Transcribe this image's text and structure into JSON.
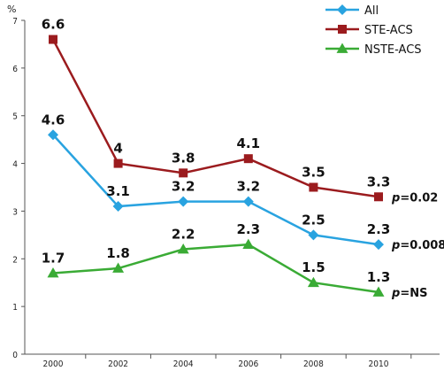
{
  "chart_data": {
    "type": "line",
    "title": "",
    "xlabel": "",
    "ylabel": "%",
    "x": [
      "2000",
      "2002",
      "2004",
      "2006",
      "2008",
      "2010"
    ],
    "ylim": [
      0,
      7
    ],
    "yticks": [
      "0",
      "1",
      "2",
      "3",
      "4",
      "5",
      "6",
      "7"
    ],
    "grid": false,
    "legend": "top-right",
    "series": [
      {
        "name": "All",
        "color": "#29a3e0",
        "marker": "diamond",
        "values": [
          4.6,
          3.1,
          3.2,
          3.2,
          2.5,
          2.3
        ],
        "labels": [
          "4.6",
          "3.1",
          "3.2",
          "3.2",
          "2.5",
          "2.3"
        ],
        "pvalue": "=0.008"
      },
      {
        "name": "STE-ACS",
        "color": "#9b1b1e",
        "marker": "square",
        "values": [
          6.6,
          4.0,
          3.8,
          4.1,
          3.5,
          3.3
        ],
        "labels": [
          "6.6",
          "4",
          "3.8",
          "4.1",
          "3.5",
          "3.3"
        ],
        "pvalue": "=0.02"
      },
      {
        "name": "NSTE-ACS",
        "color": "#3aab35",
        "marker": "triangle",
        "values": [
          1.7,
          1.8,
          2.2,
          2.3,
          1.5,
          1.3
        ],
        "labels": [
          "1.7",
          "1.8",
          "2.2",
          "2.3",
          "1.5",
          "1.3"
        ],
        "pvalue": "=NS"
      }
    ],
    "pvalue_symbol": "p"
  }
}
